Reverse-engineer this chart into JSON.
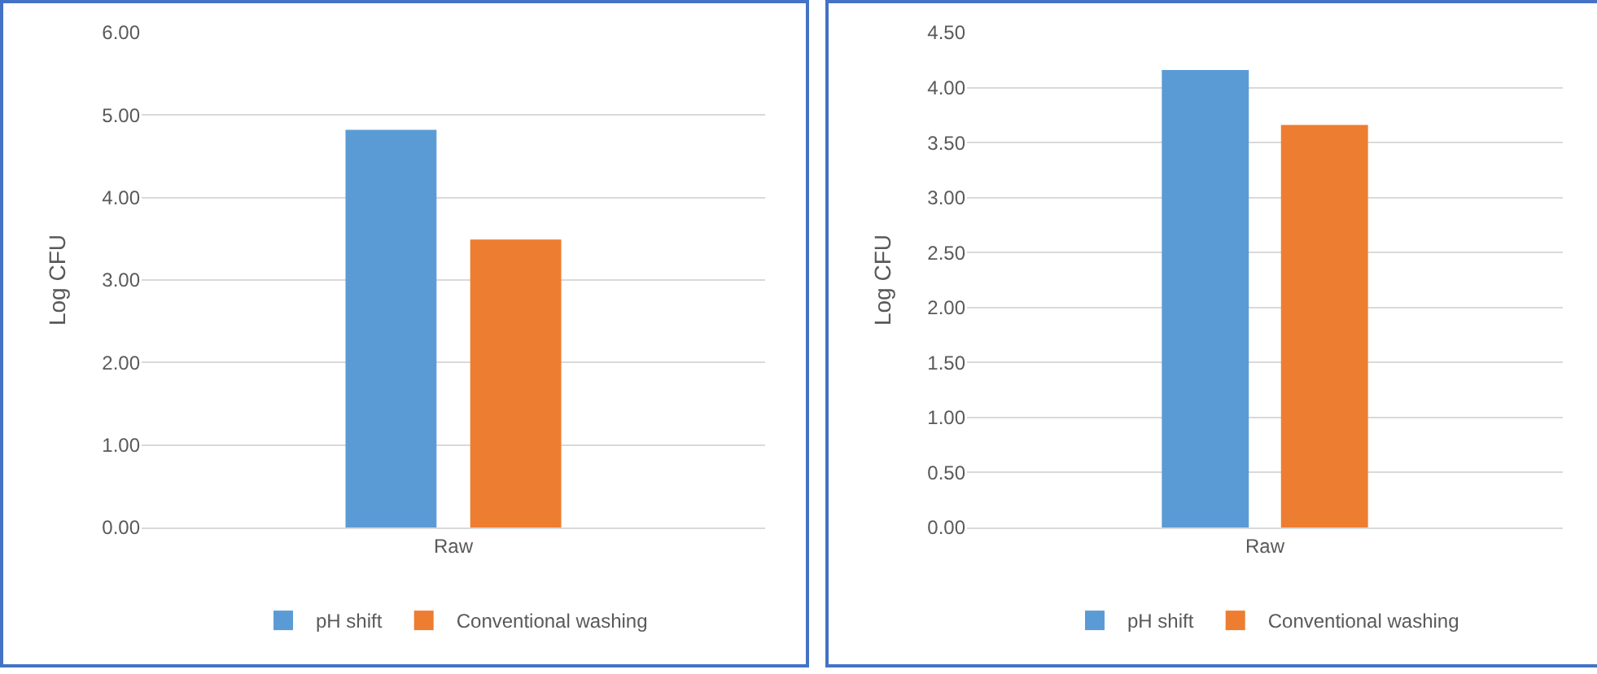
{
  "chart_data": [
    {
      "type": "bar",
      "ylabel": "Log CFU",
      "categories": [
        "Raw"
      ],
      "series": [
        {
          "name": "pH shift",
          "color": "#5b9bd5",
          "values": [
            4.82
          ]
        },
        {
          "name": "Conventional washing",
          "color": "#ed7d31",
          "values": [
            3.49
          ]
        }
      ],
      "ylim": [
        0,
        6
      ],
      "yticks": [
        {
          "value": 0,
          "label": "0.00"
        },
        {
          "value": 1,
          "label": "1.00"
        },
        {
          "value": 2,
          "label": "2.00"
        },
        {
          "value": 3,
          "label": "3.00"
        },
        {
          "value": 4,
          "label": "4.00"
        },
        {
          "value": 5,
          "label": "5.00"
        },
        {
          "value": 6,
          "label": "6.00"
        }
      ],
      "grid": "y",
      "legend": "bottom"
    },
    {
      "type": "bar",
      "ylabel": "Log CFU",
      "categories": [
        "Raw"
      ],
      "series": [
        {
          "name": "pH shift",
          "color": "#5b9bd5",
          "values": [
            4.16
          ]
        },
        {
          "name": "Conventional washing",
          "color": "#ed7d31",
          "values": [
            3.66
          ]
        }
      ],
      "ylim": [
        0,
        4.5
      ],
      "yticks": [
        {
          "value": 0,
          "label": "0.00"
        },
        {
          "value": 0.5,
          "label": "0.50"
        },
        {
          "value": 1,
          "label": "1.00"
        },
        {
          "value": 1.5,
          "label": "1.50"
        },
        {
          "value": 2,
          "label": "2.00"
        },
        {
          "value": 2.5,
          "label": "2.50"
        },
        {
          "value": 3,
          "label": "3.00"
        },
        {
          "value": 3.5,
          "label": "3.50"
        },
        {
          "value": 4,
          "label": "4.00"
        },
        {
          "value": 4.5,
          "label": "4.50"
        }
      ],
      "grid": "y",
      "legend": "bottom"
    }
  ]
}
